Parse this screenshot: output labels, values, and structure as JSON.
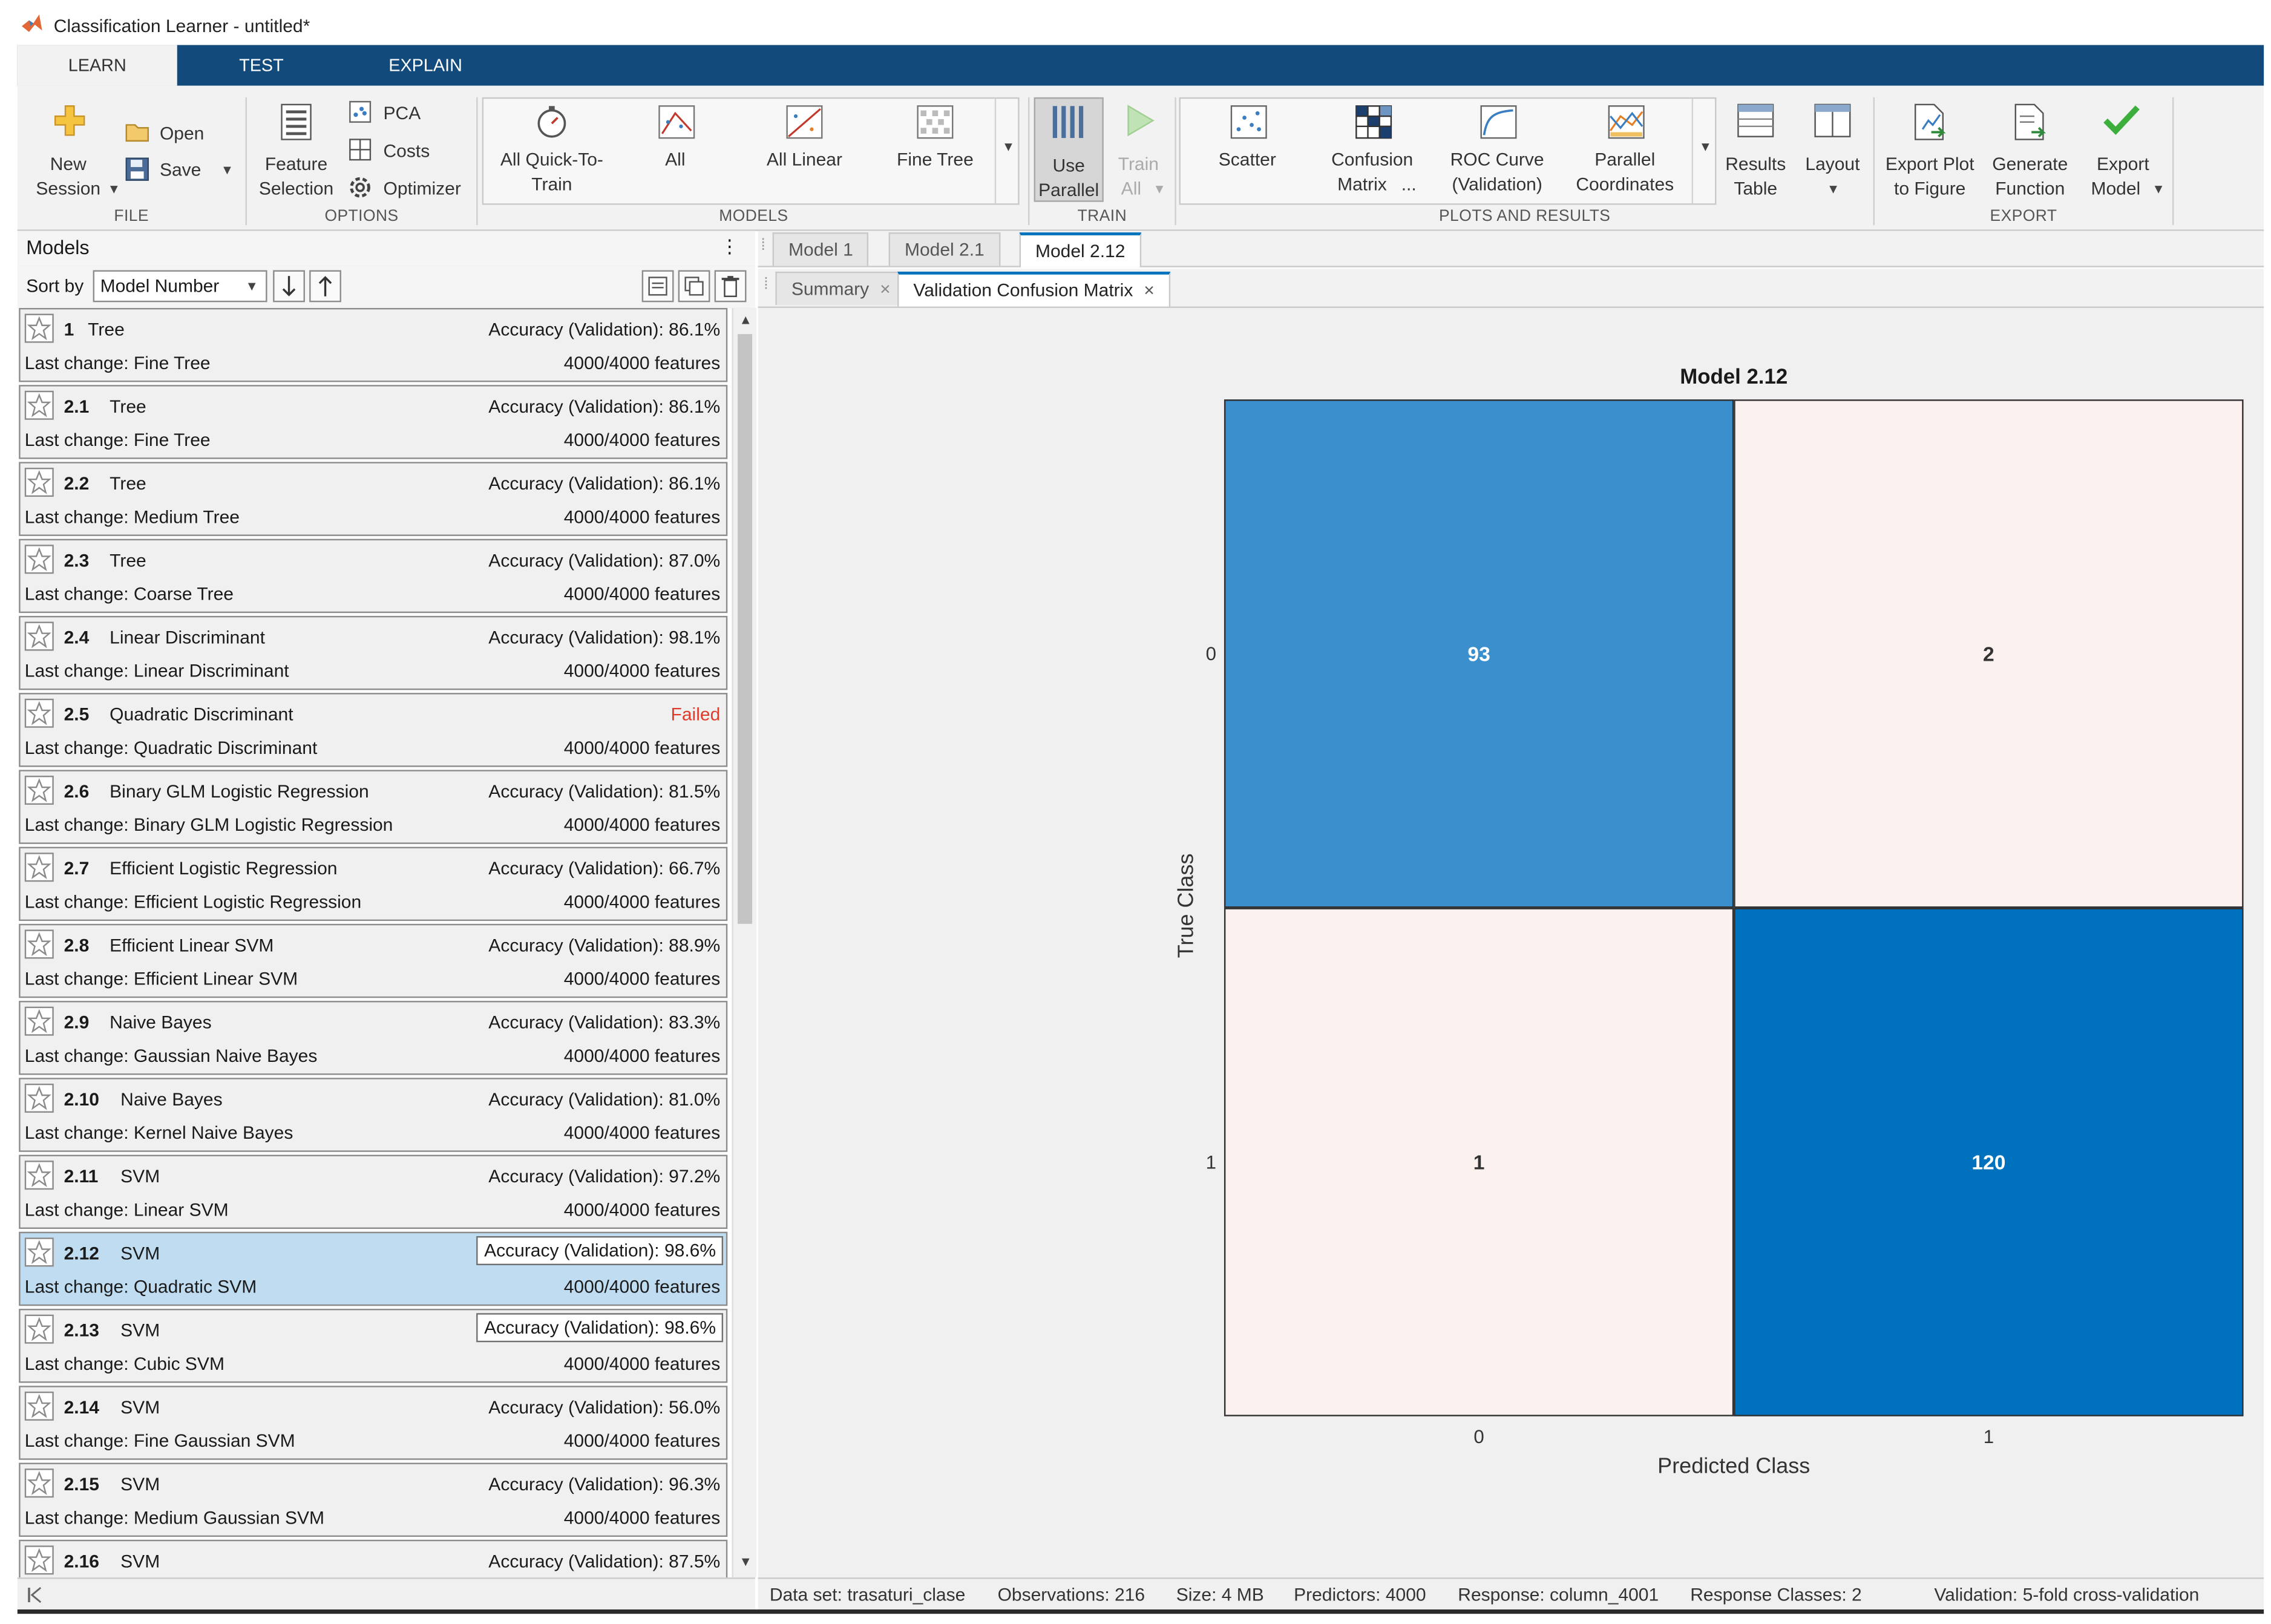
{
  "window": {
    "title": "Classification Learner - untitled*"
  },
  "ribbon_tabs": [
    "LEARN",
    "TEST",
    "EXPLAIN"
  ],
  "ribbon": {
    "file": {
      "label": "FILE",
      "new_session_1": "New",
      "new_session_2": "Session",
      "open": "Open",
      "save": "Save"
    },
    "options": {
      "label": "OPTIONS",
      "feature_selection_1": "Feature",
      "feature_selection_2": "Selection",
      "pca": "PCA",
      "costs": "Costs",
      "optimizer": "Optimizer"
    },
    "models": {
      "label": "MODELS",
      "quick_1": "All Quick-To-",
      "quick_2": "Train",
      "all": "All",
      "all_linear": "All Linear",
      "fine_tree": "Fine Tree"
    },
    "train": {
      "label": "TRAIN",
      "use_parallel_1": "Use",
      "use_parallel_2": "Parallel",
      "train_all_1": "Train",
      "train_all_2": "All"
    },
    "plots": {
      "label": "PLOTS AND RESULTS",
      "scatter": "Scatter",
      "confusion_1": "Confusion",
      "confusion_2": "Matrix",
      "confusion_ellipsis": "...",
      "roc_1": "ROC Curve",
      "roc_2": "(Validation)",
      "parallel_1": "Parallel",
      "parallel_2": "Coordinates",
      "results_1": "Results",
      "results_2": "Table",
      "layout": "Layout"
    },
    "export": {
      "label": "EXPORT",
      "export_plot_1": "Export Plot",
      "export_plot_2": "to Figure",
      "generate_1": "Generate",
      "generate_2": "Function",
      "export_model_1": "Export",
      "export_model_2": "Model"
    }
  },
  "models_panel": {
    "title": "Models",
    "menu_glyph": "⋮",
    "sort_by_label": "Sort by",
    "sort_value": "Model Number",
    "items": [
      {
        "num": "1",
        "type": "Tree",
        "acc": "Accuracy (Validation): 86.1%",
        "last_change": "Last change: Fine Tree",
        "features": "4000/4000 features"
      },
      {
        "num": "2.1",
        "type": "Tree",
        "acc": "Accuracy (Validation): 86.1%",
        "last_change": "Last change: Fine Tree",
        "features": "4000/4000 features"
      },
      {
        "num": "2.2",
        "type": "Tree",
        "acc": "Accuracy (Validation): 86.1%",
        "last_change": "Last change: Medium Tree",
        "features": "4000/4000 features"
      },
      {
        "num": "2.3",
        "type": "Tree",
        "acc": "Accuracy (Validation): 87.0%",
        "last_change": "Last change: Coarse Tree",
        "features": "4000/4000 features"
      },
      {
        "num": "2.4",
        "type": "Linear Discriminant",
        "acc": "Accuracy (Validation): 98.1%",
        "last_change": "Last change: Linear Discriminant",
        "features": "4000/4000 features"
      },
      {
        "num": "2.5",
        "type": "Quadratic Discriminant",
        "acc": "Failed",
        "last_change": "Last change: Quadratic Discriminant",
        "features": "4000/4000 features"
      },
      {
        "num": "2.6",
        "type": "Binary GLM Logistic Regression",
        "acc": "Accuracy (Validation): 81.5%",
        "last_change": "Last change: Binary GLM Logistic Regression",
        "features": "4000/4000 features"
      },
      {
        "num": "2.7",
        "type": "Efficient Logistic Regression",
        "acc": "Accuracy (Validation): 66.7%",
        "last_change": "Last change: Efficient Logistic Regression",
        "features": "4000/4000 features"
      },
      {
        "num": "2.8",
        "type": "Efficient Linear SVM",
        "acc": "Accuracy (Validation): 88.9%",
        "last_change": "Last change: Efficient Linear SVM",
        "features": "4000/4000 features"
      },
      {
        "num": "2.9",
        "type": "Naive Bayes",
        "acc": "Accuracy (Validation): 83.3%",
        "last_change": "Last change: Gaussian Naive Bayes",
        "features": "4000/4000 features"
      },
      {
        "num": "2.10",
        "type": "Naive Bayes",
        "acc": "Accuracy (Validation): 81.0%",
        "last_change": "Last change: Kernel Naive Bayes",
        "features": "4000/4000 features"
      },
      {
        "num": "2.11",
        "type": "SVM",
        "acc": "Accuracy (Validation): 97.2%",
        "last_change": "Last change: Linear SVM",
        "features": "4000/4000 features"
      },
      {
        "num": "2.12",
        "type": "SVM",
        "acc": "Accuracy (Validation): 98.6%",
        "last_change": "Last change: Quadratic SVM",
        "features": "4000/4000 features",
        "selected": true,
        "boxed": true
      },
      {
        "num": "2.13",
        "type": "SVM",
        "acc": "Accuracy (Validation): 98.6%",
        "last_change": "Last change: Cubic SVM",
        "features": "4000/4000 features",
        "boxed": true
      },
      {
        "num": "2.14",
        "type": "SVM",
        "acc": "Accuracy (Validation): 56.0%",
        "last_change": "Last change: Fine Gaussian SVM",
        "features": "4000/4000 features"
      },
      {
        "num": "2.15",
        "type": "SVM",
        "acc": "Accuracy (Validation): 96.3%",
        "last_change": "Last change: Medium Gaussian SVM",
        "features": "4000/4000 features"
      },
      {
        "num": "2.16",
        "type": "SVM",
        "acc": "Accuracy (Validation): 87.5%",
        "last_change": "",
        "features": ""
      }
    ]
  },
  "doc_tabs": [
    "Model 1",
    "Model 2.1",
    "Model 2.12"
  ],
  "view_tabs": [
    {
      "label": "Summary",
      "close": "×"
    },
    {
      "label": "Validation Confusion Matrix",
      "close": "×"
    }
  ],
  "chart_data": {
    "type": "heatmap",
    "title": "Model 2.12",
    "xlabel": "Predicted Class",
    "ylabel": "True Class",
    "x_categories": [
      "0",
      "1"
    ],
    "y_categories": [
      "0",
      "1"
    ],
    "values": [
      [
        93,
        2
      ],
      [
        1,
        120
      ]
    ],
    "colors": {
      "high": "#0072bd",
      "mid": "#3a8fcc",
      "low": "#fbf1ee"
    }
  },
  "status_bar": {
    "dataset": "Data set: trasaturi_clase",
    "observations": "Observations: 216",
    "size": "Size: 4 MB",
    "predictors": "Predictors: 4000",
    "response": "Response: column_4001",
    "response_classes": "Response Classes: 2",
    "validation": "Validation: 5-fold cross-validation"
  }
}
